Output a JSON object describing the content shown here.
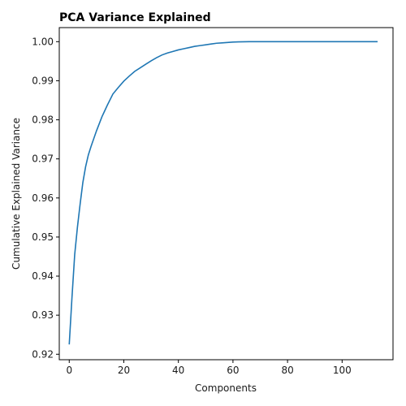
{
  "chart_data": {
    "type": "line",
    "title": "PCA Variance Explained",
    "xlabel": "Components",
    "ylabel": "Cumulative Explained Variance",
    "xlim": [
      -3.65,
      118.65
    ],
    "ylim": [
      0.9186,
      1.0036
    ],
    "xticks": [
      0,
      20,
      40,
      60,
      80,
      100
    ],
    "yticks": [
      0.92,
      0.93,
      0.94,
      0.95,
      0.96,
      0.97,
      0.98,
      0.99,
      1.0
    ],
    "ytick_labels": [
      "0.92",
      "0.93",
      "0.94",
      "0.95",
      "0.96",
      "0.97",
      "0.98",
      "0.99",
      "1.00"
    ],
    "grid": false,
    "line_color": "#1f77b4",
    "series": [
      {
        "x": [
          0,
          1,
          2,
          3,
          4,
          5,
          6,
          7,
          8,
          9,
          10,
          12,
          14,
          16,
          18,
          20,
          22,
          24,
          26,
          28,
          30,
          32,
          34,
          36,
          38,
          40,
          42,
          44,
          46,
          48,
          50,
          52,
          54,
          56,
          58,
          60,
          62,
          64,
          66,
          68,
          70,
          75,
          80,
          85,
          90,
          95,
          100,
          105,
          110,
          113
        ],
        "values": [
          0.9225,
          0.9345,
          0.9455,
          0.9525,
          0.9585,
          0.964,
          0.968,
          0.971,
          0.9732,
          0.9752,
          0.9772,
          0.9808,
          0.9838,
          0.9866,
          0.9883,
          0.9899,
          0.9912,
          0.9924,
          0.9933,
          0.9942,
          0.9951,
          0.9959,
          0.9966,
          0.9971,
          0.9975,
          0.9979,
          0.9982,
          0.9985,
          0.9988,
          0.999,
          0.9992,
          0.9994,
          0.9996,
          0.9997,
          0.9998,
          0.9999,
          0.99995,
          0.99998,
          1.0,
          1.0,
          1.0,
          1.0,
          1.0,
          1.0,
          1.0,
          1.0,
          1.0,
          1.0,
          1.0,
          1.0
        ]
      }
    ]
  }
}
